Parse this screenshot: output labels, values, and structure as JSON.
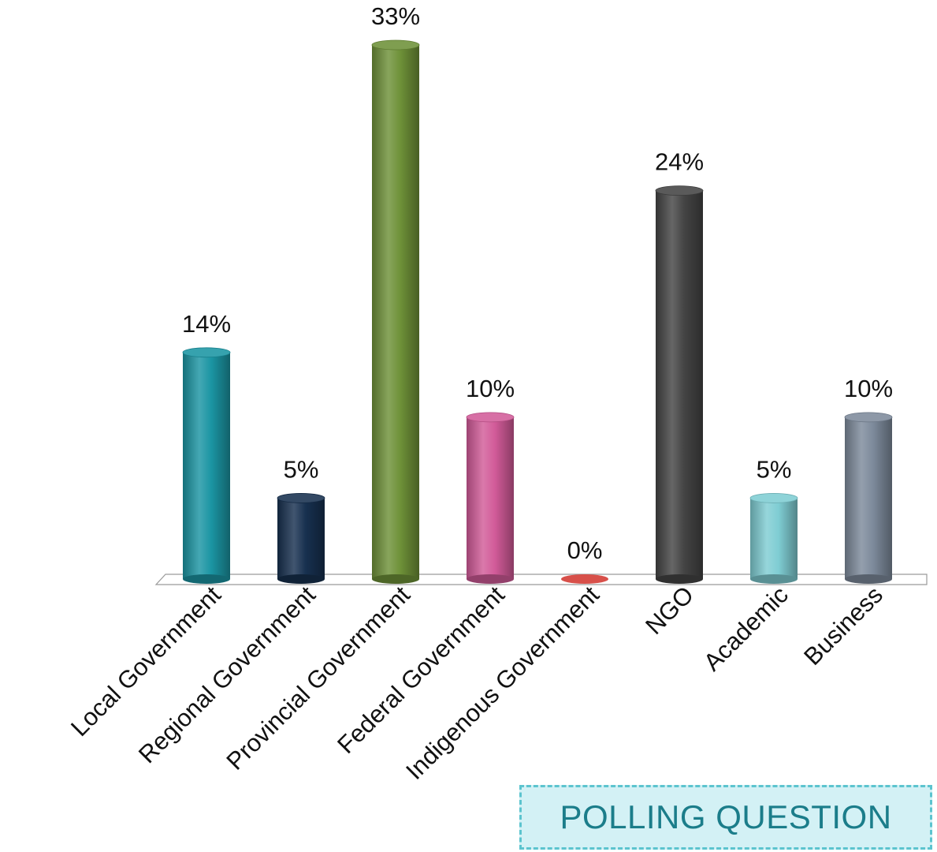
{
  "chart_data": {
    "type": "bar",
    "categories": [
      "Local Government",
      "Regional Government",
      "Provincial Government",
      "Federal Government",
      "Indigenous Government",
      "NGO",
      "Academic",
      "Business"
    ],
    "values": [
      14,
      5,
      33,
      10,
      0,
      24,
      5,
      10
    ],
    "value_labels": [
      "14%",
      "5%",
      "33%",
      "10%",
      "0%",
      "24%",
      "5%",
      "10%"
    ],
    "colors": [
      "#1b95a3",
      "#17304f",
      "#6e9138",
      "#d25b99",
      "#d8504a",
      "#444444",
      "#7fcdd3",
      "#7d8a9b"
    ],
    "ylim": [
      0,
      33
    ],
    "grid": false,
    "legend": "none"
  },
  "badge": {
    "label": "POLLING QUESTION"
  }
}
